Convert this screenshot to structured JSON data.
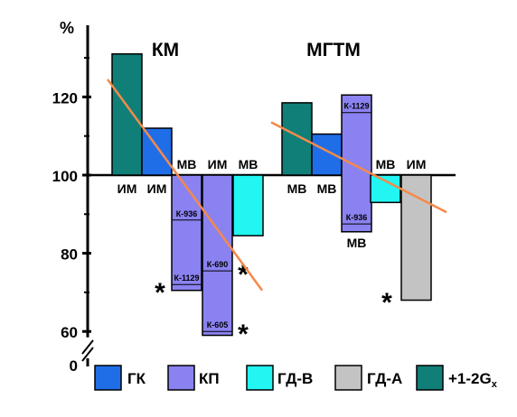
{
  "chart_data": {
    "type": "bar",
    "ylabel": "%",
    "ylim": [
      0,
      130
    ],
    "y_ticks": [
      "120",
      "100",
      "80",
      "60",
      "0"
    ],
    "baseline": 100,
    "axis_break": true,
    "colors": {
      "ГК": "#1f6ee8",
      "КП": "#8a82f0",
      "ГД-В": "#22f5f2",
      "ГД-А": "#c3c3c3",
      "+1-2G": "#0f7f78",
      "trend": "#f48a4a",
      "asterisk": "#8b1a1a"
    },
    "legend": [
      {
        "key": "ГК",
        "label": "ГК"
      },
      {
        "key": "КП",
        "label": "КП"
      },
      {
        "key": "ГД-В",
        "label": "ГД-В"
      },
      {
        "key": "ГД-А",
        "label": "ГД-А"
      },
      {
        "key": "+1-2G",
        "label": "+1-2G",
        "subscript": "x"
      }
    ],
    "groups": [
      {
        "title": "КМ",
        "bars": [
          {
            "series": "+1-2G",
            "value": 131,
            "label": "ИМ"
          },
          {
            "series": "ГК",
            "value": 112,
            "label": "ИМ"
          },
          {
            "series": "КП",
            "value": 70.5,
            "label": "МВ",
            "segments": [
              {
                "name": "К-936",
                "value": 88.5
              },
              {
                "name": "К-1129",
                "value": 72
              }
            ],
            "asterisk": true
          },
          {
            "series": "КП",
            "value": 59,
            "label": "ИМ",
            "segments": [
              {
                "name": "К-690",
                "value": 75.5
              },
              {
                "name": "К-605",
                "value": 60
              }
            ],
            "asterisk": true,
            "asterisk2": true
          },
          {
            "series": "ГД-В",
            "value": 84.5,
            "label": "МВ"
          }
        ],
        "trend": [
          124.5,
          70.5
        ]
      },
      {
        "title": "МГТМ",
        "bars": [
          {
            "series": "+1-2G",
            "value": 118.5,
            "label": "МВ"
          },
          {
            "series": "ГК",
            "value": 110.5,
            "label": "МВ"
          },
          {
            "series": "КП",
            "value": 85.5,
            "top": 120.5,
            "label": "МВ",
            "segments": [
              {
                "name": "К-1129",
                "value": 116
              },
              {
                "name": "К-936",
                "value": 87.5
              }
            ]
          },
          {
            "series": "ГД-В",
            "value": 93,
            "label": "МВ"
          },
          {
            "series": "ГД-А",
            "value": 68,
            "label": "ИМ",
            "asterisk": true
          }
        ],
        "trend": [
          113.5,
          90.5
        ]
      }
    ]
  }
}
